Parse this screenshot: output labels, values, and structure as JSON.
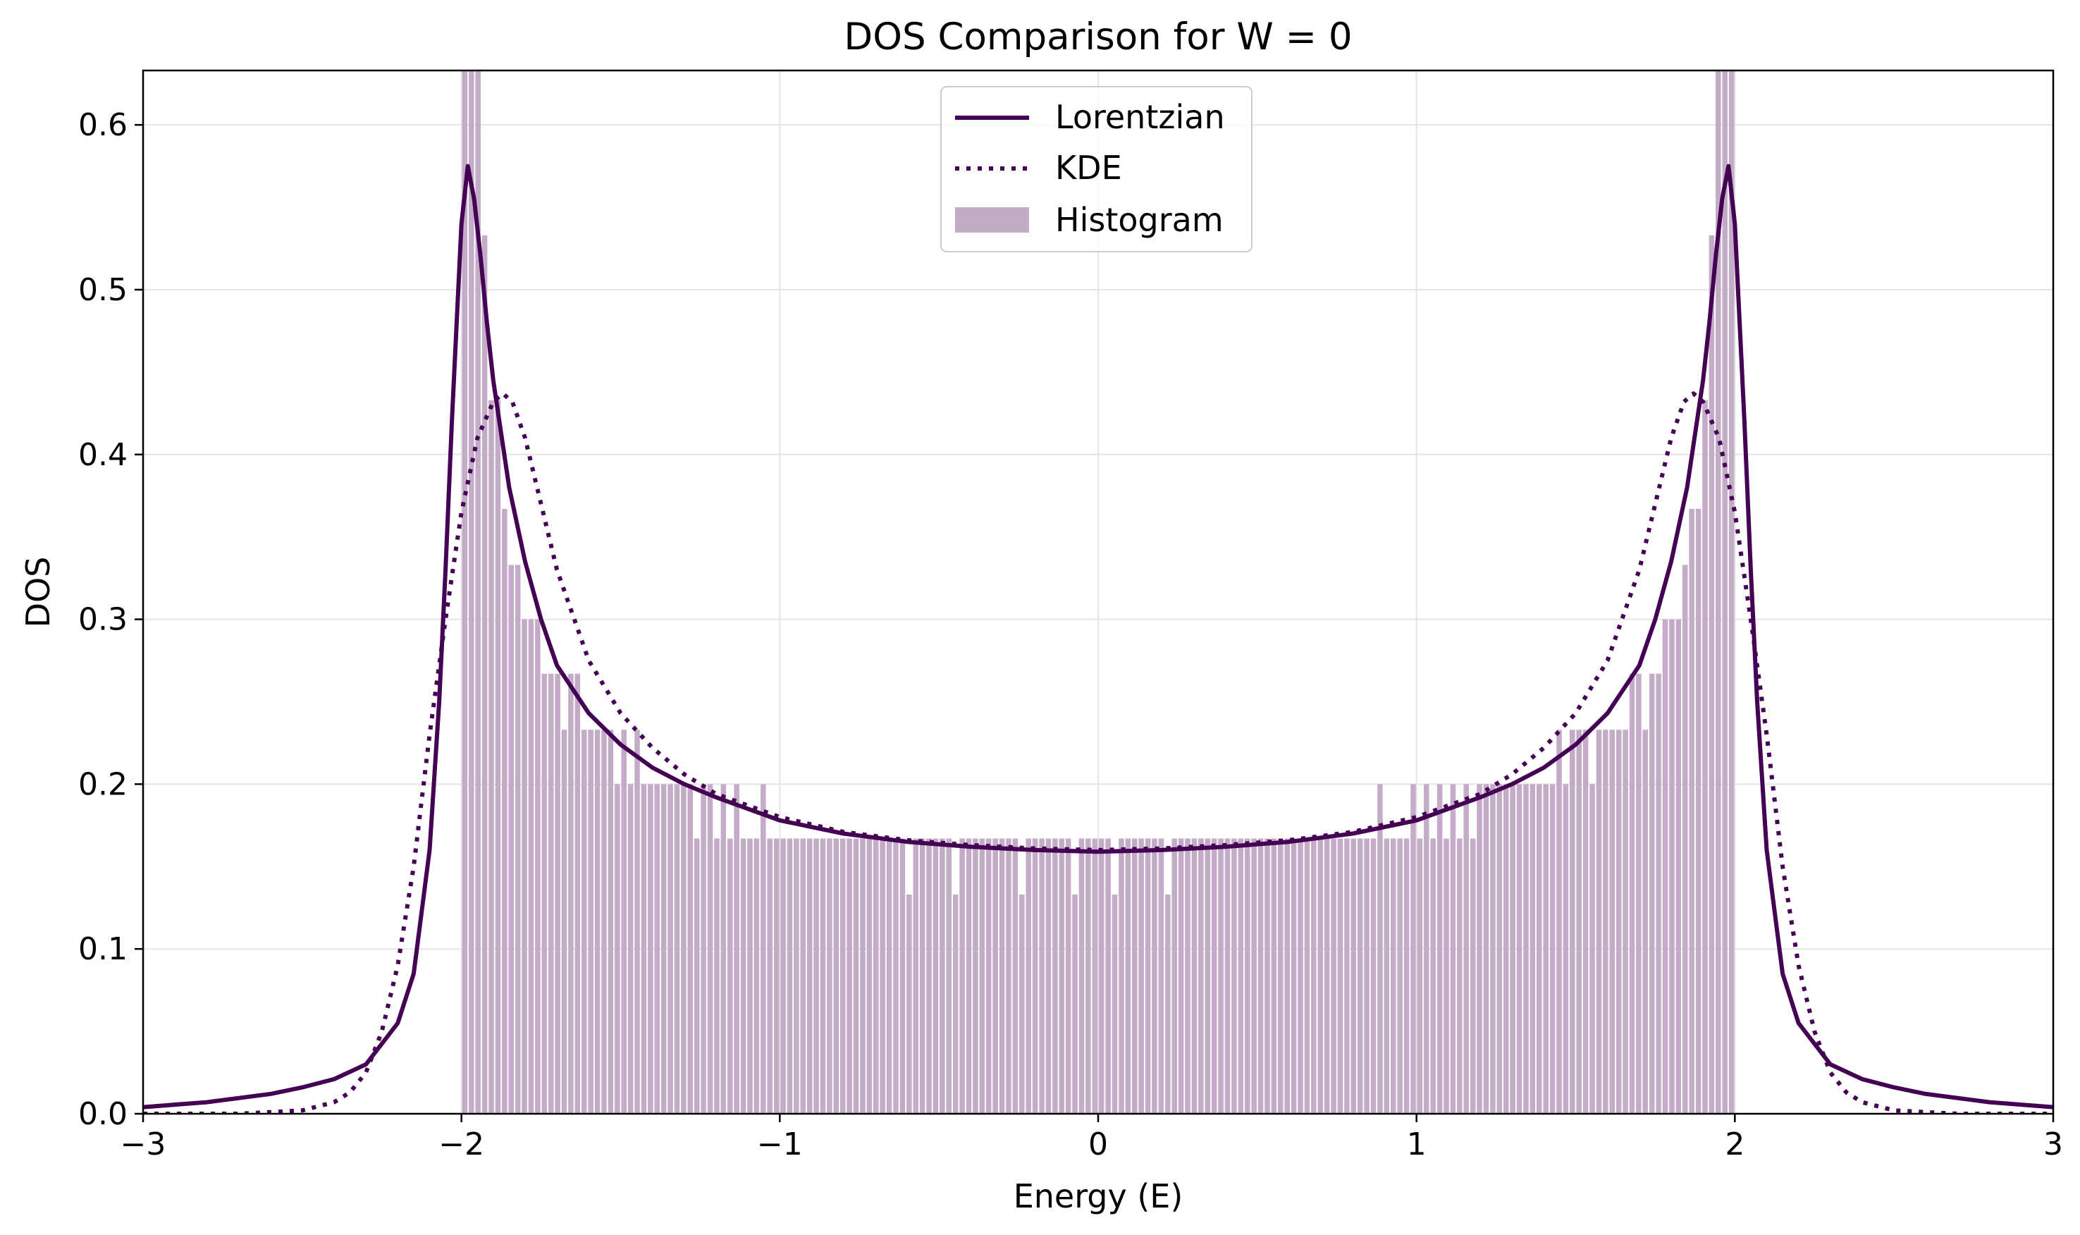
{
  "chart_data": {
    "type": "bar",
    "title": "DOS Comparison for W = 0",
    "xlabel": "Energy (E)",
    "ylabel": "DOS",
    "xlim": [
      -3,
      3
    ],
    "ylim": [
      0,
      0.633
    ],
    "xticks": [
      -3,
      -2,
      -1,
      0,
      1,
      2,
      3
    ],
    "xtick_labels": [
      "−3",
      "−2",
      "−1",
      "0",
      "1",
      "2",
      "3"
    ],
    "yticks": [
      0.0,
      0.1,
      0.2,
      0.3,
      0.4,
      0.5,
      0.6
    ],
    "ytick_labels": [
      "0.0",
      "0.1",
      "0.2",
      "0.3",
      "0.4",
      "0.5",
      "0.6"
    ],
    "grid": true,
    "legend_position": "upper center",
    "colors": {
      "lorentzian": "#440154",
      "kde": "#440154",
      "histogram": "#c4acc8",
      "grid": "#e5e5e5",
      "axes": "#000000"
    },
    "series": [
      {
        "name": "Lorentzian",
        "kind": "line",
        "style": "solid",
        "x": [
          -3.0,
          -2.8,
          -2.6,
          -2.5,
          -2.4,
          -2.3,
          -2.2,
          -2.15,
          -2.1,
          -2.07,
          -2.05,
          -2.03,
          -2.0,
          -1.98,
          -1.96,
          -1.94,
          -1.92,
          -1.9,
          -1.85,
          -1.8,
          -1.75,
          -1.7,
          -1.6,
          -1.5,
          -1.4,
          -1.3,
          -1.2,
          -1.0,
          -0.8,
          -0.6,
          -0.4,
          -0.2,
          0.0,
          0.2,
          0.4,
          0.6,
          0.8,
          1.0,
          1.2,
          1.3,
          1.4,
          1.5,
          1.6,
          1.7,
          1.75,
          1.8,
          1.85,
          1.9,
          1.92,
          1.94,
          1.96,
          1.98,
          2.0,
          2.03,
          2.05,
          2.07,
          2.1,
          2.15,
          2.2,
          2.3,
          2.4,
          2.5,
          2.6,
          2.8,
          3.0
        ],
        "y": [
          0.004,
          0.007,
          0.012,
          0.016,
          0.021,
          0.03,
          0.055,
          0.085,
          0.16,
          0.25,
          0.33,
          0.42,
          0.54,
          0.575,
          0.555,
          0.52,
          0.48,
          0.445,
          0.38,
          0.335,
          0.3,
          0.272,
          0.243,
          0.224,
          0.21,
          0.2,
          0.192,
          0.178,
          0.17,
          0.165,
          0.162,
          0.16,
          0.159,
          0.16,
          0.162,
          0.165,
          0.17,
          0.178,
          0.192,
          0.2,
          0.21,
          0.224,
          0.243,
          0.272,
          0.3,
          0.335,
          0.38,
          0.445,
          0.48,
          0.52,
          0.555,
          0.575,
          0.54,
          0.42,
          0.33,
          0.25,
          0.16,
          0.085,
          0.055,
          0.03,
          0.021,
          0.016,
          0.012,
          0.007,
          0.004
        ]
      },
      {
        "name": "KDE",
        "kind": "line",
        "style": "dotted",
        "x": [
          -3.0,
          -2.7,
          -2.5,
          -2.4,
          -2.35,
          -2.3,
          -2.25,
          -2.2,
          -2.15,
          -2.1,
          -2.05,
          -2.0,
          -1.95,
          -1.9,
          -1.87,
          -1.84,
          -1.8,
          -1.75,
          -1.7,
          -1.6,
          -1.5,
          -1.4,
          -1.3,
          -1.2,
          -1.0,
          -0.8,
          -0.6,
          -0.4,
          -0.2,
          0.0,
          0.2,
          0.4,
          0.6,
          0.8,
          1.0,
          1.2,
          1.3,
          1.4,
          1.5,
          1.6,
          1.7,
          1.75,
          1.8,
          1.84,
          1.87,
          1.9,
          1.95,
          2.0,
          2.05,
          2.1,
          2.15,
          2.2,
          2.25,
          2.3,
          2.35,
          2.4,
          2.5,
          2.7,
          3.0
        ],
        "y": [
          0.0,
          0.0,
          0.002,
          0.007,
          0.013,
          0.025,
          0.05,
          0.09,
          0.15,
          0.23,
          0.3,
          0.365,
          0.41,
          0.432,
          0.437,
          0.432,
          0.41,
          0.37,
          0.33,
          0.275,
          0.243,
          0.222,
          0.206,
          0.194,
          0.18,
          0.171,
          0.166,
          0.163,
          0.161,
          0.16,
          0.161,
          0.163,
          0.166,
          0.171,
          0.18,
          0.194,
          0.206,
          0.222,
          0.243,
          0.275,
          0.33,
          0.37,
          0.41,
          0.432,
          0.437,
          0.432,
          0.41,
          0.365,
          0.3,
          0.23,
          0.15,
          0.09,
          0.05,
          0.025,
          0.013,
          0.007,
          0.002,
          0.0,
          0.0
        ]
      },
      {
        "name": "Histogram",
        "kind": "bars",
        "bin_edges": [
          -2.0,
          2.0
        ],
        "values": [
          0.7,
          0.7,
          0.7,
          0.533,
          0.433,
          0.433,
          0.367,
          0.333,
          0.333,
          0.3,
          0.3,
          0.3,
          0.267,
          0.267,
          0.267,
          0.233,
          0.267,
          0.267,
          0.233,
          0.233,
          0.233,
          0.233,
          0.233,
          0.2,
          0.233,
          0.2,
          0.233,
          0.2,
          0.2,
          0.2,
          0.2,
          0.2,
          0.2,
          0.2,
          0.2,
          0.167,
          0.2,
          0.2,
          0.167,
          0.2,
          0.167,
          0.2,
          0.167,
          0.167,
          0.167,
          0.2,
          0.167,
          0.167,
          0.167,
          0.167,
          0.167,
          0.167,
          0.167,
          0.167,
          0.167,
          0.167,
          0.167,
          0.167,
          0.167,
          0.167,
          0.167,
          0.167,
          0.167,
          0.167,
          0.167,
          0.167,
          0.167,
          0.133,
          0.167,
          0.167,
          0.167,
          0.167,
          0.167,
          0.167,
          0.133,
          0.167,
          0.167,
          0.167,
          0.167,
          0.167,
          0.167,
          0.167,
          0.167,
          0.167,
          0.133,
          0.167,
          0.167,
          0.167,
          0.167,
          0.167,
          0.167,
          0.167,
          0.133,
          0.167,
          0.167,
          0.167,
          0.167,
          0.167,
          0.133,
          0.167,
          0.167,
          0.167,
          0.167,
          0.167,
          0.167,
          0.167,
          0.133,
          0.167,
          0.167,
          0.167,
          0.167,
          0.167,
          0.167,
          0.167,
          0.167,
          0.167,
          0.167,
          0.167,
          0.167,
          0.167,
          0.167,
          0.167,
          0.167,
          0.167,
          0.167,
          0.167,
          0.167,
          0.167,
          0.167,
          0.167,
          0.167,
          0.167,
          0.167,
          0.167,
          0.167,
          0.167,
          0.167,
          0.167,
          0.2,
          0.167,
          0.167,
          0.167,
          0.167,
          0.2,
          0.167,
          0.2,
          0.167,
          0.2,
          0.167,
          0.2,
          0.167,
          0.2,
          0.167,
          0.2,
          0.2,
          0.2,
          0.2,
          0.2,
          0.2,
          0.2,
          0.2,
          0.2,
          0.2,
          0.2,
          0.2,
          0.233,
          0.2,
          0.233,
          0.233,
          0.233,
          0.2,
          0.233,
          0.233,
          0.233,
          0.233,
          0.233,
          0.267,
          0.267,
          0.233,
          0.267,
          0.267,
          0.3,
          0.3,
          0.3,
          0.333,
          0.367,
          0.367,
          0.433,
          0.533,
          0.7,
          0.7,
          0.7
        ]
      }
    ]
  }
}
